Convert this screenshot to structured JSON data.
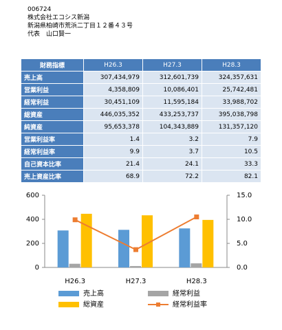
{
  "header": {
    "lines": [
      "006724",
      "株式会社エコシス新潟",
      "新潟県柏崎市荒浜二丁目１２番４３号",
      "代表　山口賢一"
    ]
  },
  "table": {
    "columns": [
      "財務指標",
      "H26.3",
      "H27.3",
      "H28.3"
    ],
    "rows": [
      [
        "売上高",
        "307,434,979",
        "312,601,739",
        "324,357,631"
      ],
      [
        "営業利益",
        "4,358,809",
        "10,086,401",
        "25,742,481"
      ],
      [
        "経常利益",
        "30,451,109",
        "11,595,184",
        "33,988,702"
      ],
      [
        "総資産",
        "446,035,352",
        "433,253,737",
        "395,038,798"
      ],
      [
        "純資産",
        "95,653,378",
        "104,343,889",
        "131,357,120"
      ],
      [
        "営業利益率",
        "1.4",
        "3.2",
        "7.9"
      ],
      [
        "経常利益率",
        "9.9",
        "3.7",
        "10.5"
      ],
      [
        "自己資本比率",
        "21.4",
        "24.1",
        "33.3"
      ],
      [
        "売上資産比率",
        "68.9",
        "72.2",
        "82.1"
      ]
    ]
  },
  "chart_data": {
    "type": "bar",
    "categories": [
      "H26.3",
      "H27.3",
      "H28.3"
    ],
    "series": [
      {
        "name": "売上高",
        "color": "#5b9bd5",
        "values": [
          307.4,
          312.6,
          324.4
        ]
      },
      {
        "name": "経常利益",
        "color": "#a5a5a5",
        "values": [
          30.5,
          11.6,
          34.0
        ]
      },
      {
        "name": "総資産",
        "color": "#ffc000",
        "values": [
          446.0,
          433.3,
          395.0
        ]
      },
      {
        "name": "経常利益率",
        "color": "#ed7d31",
        "type": "line",
        "axis": "y2",
        "values": [
          9.9,
          3.7,
          10.5
        ]
      }
    ],
    "ylim": [
      0,
      600
    ],
    "yticks": [
      0,
      200,
      400,
      600
    ],
    "y2lim": [
      0,
      15
    ],
    "y2ticks": [
      {
        "value": 0,
        "label": "0.0"
      },
      {
        "value": 5,
        "label": "5.0"
      },
      {
        "value": 10,
        "label": "10.0"
      },
      {
        "value": 15,
        "label": "15.0"
      }
    ]
  }
}
